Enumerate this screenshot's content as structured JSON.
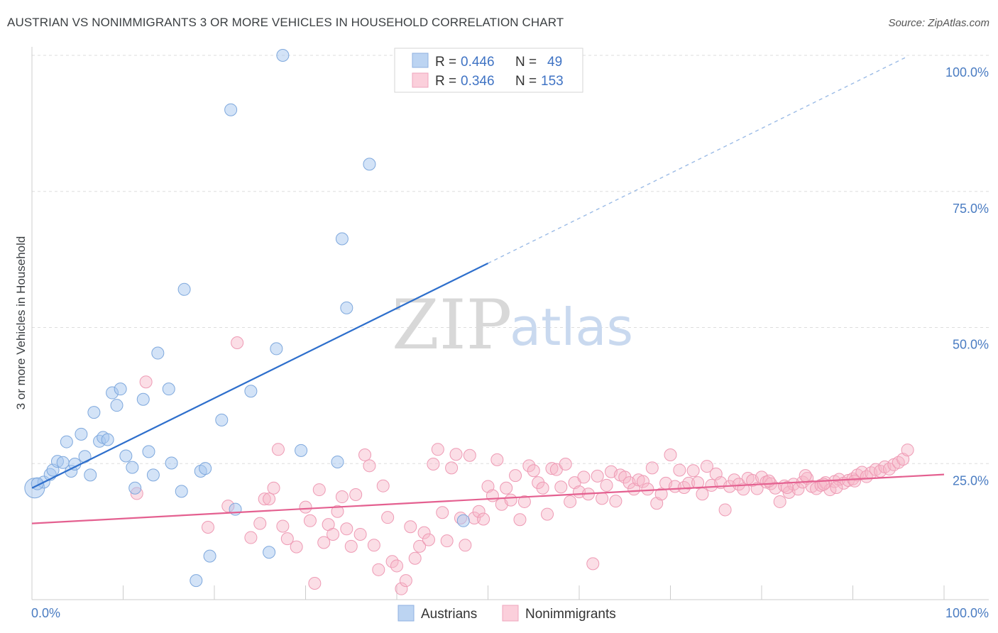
{
  "title": "AUSTRIAN VS NONIMMIGRANTS 3 OR MORE VEHICLES IN HOUSEHOLD CORRELATION CHART",
  "source": "Source: ZipAtlas.com",
  "watermark": {
    "zip": "ZIP",
    "atlas": "atlas"
  },
  "legend": {
    "rows": [
      {
        "r_label": "R =",
        "r_value": "0.446",
        "n_label": "N =",
        "n_value": "49"
      },
      {
        "r_label": "R =",
        "r_value": "0.346",
        "n_label": "N =",
        "n_value": "153"
      }
    ]
  },
  "bottom_legend": [
    "Austrians",
    "Nonimmigrants"
  ],
  "chart_data": {
    "type": "scatter",
    "title": "AUSTRIAN VS NONIMMIGRANTS 3 OR MORE VEHICLES IN HOUSEHOLD CORRELATION CHART",
    "xlabel": "",
    "ylabel": "3 or more Vehicles in Household",
    "xlim": [
      0,
      100
    ],
    "ylim": [
      0,
      100
    ],
    "x_ticks": [
      "0.0%",
      "100.0%"
    ],
    "y_ticks": [
      {
        "value": 25,
        "label": "25.0%"
      },
      {
        "value": 50,
        "label": "50.0%"
      },
      {
        "value": 75,
        "label": "75.0%"
      },
      {
        "value": 100,
        "label": "100.0%"
      }
    ],
    "grid": "horizontal dashed",
    "legend_position": "top-center",
    "colors": {
      "austrians": "#a8c8f0",
      "austrians_line": "#2e6fcc",
      "nonimmigrants": "#f6b6c8",
      "nonimmigrants_line": "#e46090"
    },
    "series": [
      {
        "name": "Austrians",
        "R": 0.446,
        "N": 49,
        "trend": {
          "x": [
            0,
            50
          ],
          "y": [
            20.5,
            61.8
          ],
          "extended_to": [
            96,
            99.8
          ]
        },
        "points": [
          [
            0.3,
            20.5
          ],
          [
            1.3,
            21.6
          ],
          [
            2.0,
            23.0
          ],
          [
            2.3,
            23.8
          ],
          [
            2.8,
            25.4
          ],
          [
            3.4,
            25.2
          ],
          [
            3.8,
            29.0
          ],
          [
            4.3,
            23.6
          ],
          [
            4.7,
            24.9
          ],
          [
            5.4,
            30.4
          ],
          [
            5.8,
            26.3
          ],
          [
            6.4,
            22.9
          ],
          [
            6.8,
            34.4
          ],
          [
            7.4,
            29.1
          ],
          [
            7.8,
            29.8
          ],
          [
            8.3,
            29.4
          ],
          [
            8.8,
            38.0
          ],
          [
            9.3,
            35.7
          ],
          [
            9.7,
            38.7
          ],
          [
            10.3,
            26.4
          ],
          [
            11.0,
            24.3
          ],
          [
            11.3,
            20.5
          ],
          [
            12.2,
            36.8
          ],
          [
            12.8,
            27.2
          ],
          [
            13.3,
            22.9
          ],
          [
            13.8,
            45.3
          ],
          [
            15.0,
            38.7
          ],
          [
            15.3,
            25.1
          ],
          [
            16.4,
            19.9
          ],
          [
            16.7,
            57.0
          ],
          [
            18.0,
            3.5
          ],
          [
            18.5,
            23.6
          ],
          [
            19.0,
            24.1
          ],
          [
            19.5,
            8.0
          ],
          [
            20.8,
            33.0
          ],
          [
            21.8,
            90.0
          ],
          [
            22.3,
            16.6
          ],
          [
            24.0,
            38.3
          ],
          [
            26.0,
            8.7
          ],
          [
            26.8,
            46.1
          ],
          [
            27.5,
            100.0
          ],
          [
            29.5,
            27.4
          ],
          [
            33.5,
            25.3
          ],
          [
            34.0,
            66.3
          ],
          [
            34.5,
            53.6
          ],
          [
            37.0,
            80.0
          ],
          [
            41.3,
            100.0
          ],
          [
            47.3,
            14.5
          ],
          [
            0.6,
            21.3
          ]
        ]
      },
      {
        "name": "Nonimmigrants",
        "R": 0.346,
        "N": 153,
        "trend": {
          "x": [
            0,
            100
          ],
          "y": [
            14.0,
            23.0
          ]
        },
        "points": [
          [
            11.5,
            19.5
          ],
          [
            12.5,
            40.0
          ],
          [
            19.3,
            13.3
          ],
          [
            21.5,
            17.2
          ],
          [
            22.5,
            47.2
          ],
          [
            24.0,
            11.4
          ],
          [
            25.0,
            14.0
          ],
          [
            25.5,
            18.5
          ],
          [
            26.0,
            18.5
          ],
          [
            26.5,
            20.5
          ],
          [
            27.0,
            27.6
          ],
          [
            27.5,
            13.5
          ],
          [
            28.0,
            11.2
          ],
          [
            29.0,
            9.7
          ],
          [
            30.0,
            17.0
          ],
          [
            30.5,
            14.5
          ],
          [
            31.0,
            3.0
          ],
          [
            31.5,
            20.2
          ],
          [
            32.0,
            10.5
          ],
          [
            32.5,
            13.8
          ],
          [
            33.0,
            12.0
          ],
          [
            33.5,
            16.2
          ],
          [
            34.0,
            18.9
          ],
          [
            34.5,
            13.0
          ],
          [
            35.0,
            9.8
          ],
          [
            35.5,
            19.3
          ],
          [
            36.0,
            12.0
          ],
          [
            36.5,
            26.6
          ],
          [
            37.0,
            24.6
          ],
          [
            37.5,
            10.0
          ],
          [
            38.0,
            5.5
          ],
          [
            38.5,
            20.9
          ],
          [
            39.0,
            15.1
          ],
          [
            39.5,
            7.0
          ],
          [
            40.0,
            6.2
          ],
          [
            40.5,
            2.0
          ],
          [
            41.0,
            3.5
          ],
          [
            41.5,
            13.4
          ],
          [
            42.0,
            7.6
          ],
          [
            42.5,
            9.8
          ],
          [
            43.0,
            12.3
          ],
          [
            43.5,
            11.0
          ],
          [
            44.0,
            24.9
          ],
          [
            44.5,
            27.6
          ],
          [
            45.0,
            16.0
          ],
          [
            45.5,
            10.8
          ],
          [
            46.0,
            24.2
          ],
          [
            46.5,
            26.7
          ],
          [
            47.0,
            15.0
          ],
          [
            47.5,
            10.0
          ],
          [
            48.0,
            26.5
          ],
          [
            48.5,
            15.0
          ],
          [
            49.0,
            16.2
          ],
          [
            49.5,
            14.8
          ],
          [
            50.0,
            20.8
          ],
          [
            50.5,
            19.1
          ],
          [
            51.0,
            25.7
          ],
          [
            51.5,
            17.5
          ],
          [
            52.0,
            20.5
          ],
          [
            52.5,
            18.3
          ],
          [
            53.0,
            22.8
          ],
          [
            53.5,
            14.7
          ],
          [
            54.0,
            18.0
          ],
          [
            54.5,
            24.6
          ],
          [
            55.0,
            23.7
          ],
          [
            55.5,
            21.5
          ],
          [
            56.0,
            20.5
          ],
          [
            56.5,
            15.7
          ],
          [
            57.0,
            24.1
          ],
          [
            57.5,
            23.9
          ],
          [
            58.0,
            20.7
          ],
          [
            58.5,
            24.9
          ],
          [
            59.0,
            18.0
          ],
          [
            59.5,
            21.5
          ],
          [
            60.0,
            19.8
          ],
          [
            60.5,
            22.5
          ],
          [
            61.0,
            19.4
          ],
          [
            61.5,
            6.6
          ],
          [
            62.0,
            22.7
          ],
          [
            62.5,
            18.6
          ],
          [
            63.0,
            21.0
          ],
          [
            63.5,
            23.5
          ],
          [
            64.0,
            18.1
          ],
          [
            64.5,
            22.9
          ],
          [
            65.0,
            22.5
          ],
          [
            65.5,
            21.5
          ],
          [
            66.0,
            20.3
          ],
          [
            66.5,
            22.0
          ],
          [
            67.0,
            21.7
          ],
          [
            67.5,
            20.3
          ],
          [
            68.0,
            24.2
          ],
          [
            68.5,
            17.7
          ],
          [
            69.0,
            19.4
          ],
          [
            69.5,
            21.4
          ],
          [
            70.0,
            26.6
          ],
          [
            70.5,
            20.8
          ],
          [
            71.0,
            23.8
          ],
          [
            71.5,
            20.6
          ],
          [
            72.0,
            21.4
          ],
          [
            72.5,
            23.7
          ],
          [
            73.0,
            21.5
          ],
          [
            73.5,
            19.4
          ],
          [
            74.0,
            24.5
          ],
          [
            74.5,
            21.0
          ],
          [
            75.0,
            23.1
          ],
          [
            75.5,
            21.5
          ],
          [
            76.0,
            16.5
          ],
          [
            76.5,
            20.8
          ],
          [
            77.0,
            22.0
          ],
          [
            77.5,
            21.2
          ],
          [
            78.0,
            20.3
          ],
          [
            78.5,
            22.3
          ],
          [
            79.0,
            21.9
          ],
          [
            79.5,
            20.4
          ],
          [
            80.0,
            22.5
          ],
          [
            80.5,
            21.6
          ],
          [
            81.0,
            21.3
          ],
          [
            81.5,
            20.5
          ],
          [
            82.0,
            18.0
          ],
          [
            82.5,
            20.9
          ],
          [
            83.0,
            19.7
          ],
          [
            83.5,
            21.2
          ],
          [
            84.0,
            20.3
          ],
          [
            84.5,
            21.6
          ],
          [
            85.0,
            22.3
          ],
          [
            85.5,
            20.8
          ],
          [
            86.0,
            20.4
          ],
          [
            86.5,
            21.0
          ],
          [
            87.0,
            21.5
          ],
          [
            87.5,
            20.2
          ],
          [
            88.0,
            21.7
          ],
          [
            88.5,
            22.1
          ],
          [
            89.0,
            21.4
          ],
          [
            89.5,
            21.9
          ],
          [
            90.0,
            22.2
          ],
          [
            90.5,
            22.9
          ],
          [
            91.0,
            23.4
          ],
          [
            91.5,
            22.6
          ],
          [
            92.0,
            23.3
          ],
          [
            92.5,
            23.9
          ],
          [
            93.0,
            23.6
          ],
          [
            93.5,
            24.4
          ],
          [
            94.0,
            24.0
          ],
          [
            94.5,
            24.8
          ],
          [
            95.0,
            25.2
          ],
          [
            95.5,
            25.8
          ],
          [
            96.0,
            27.5
          ],
          [
            90.2,
            21.8
          ],
          [
            88.2,
            20.6
          ],
          [
            86.8,
            21.2
          ],
          [
            84.8,
            22.8
          ],
          [
            82.8,
            20.6
          ],
          [
            80.8,
            21.8
          ]
        ]
      }
    ]
  }
}
